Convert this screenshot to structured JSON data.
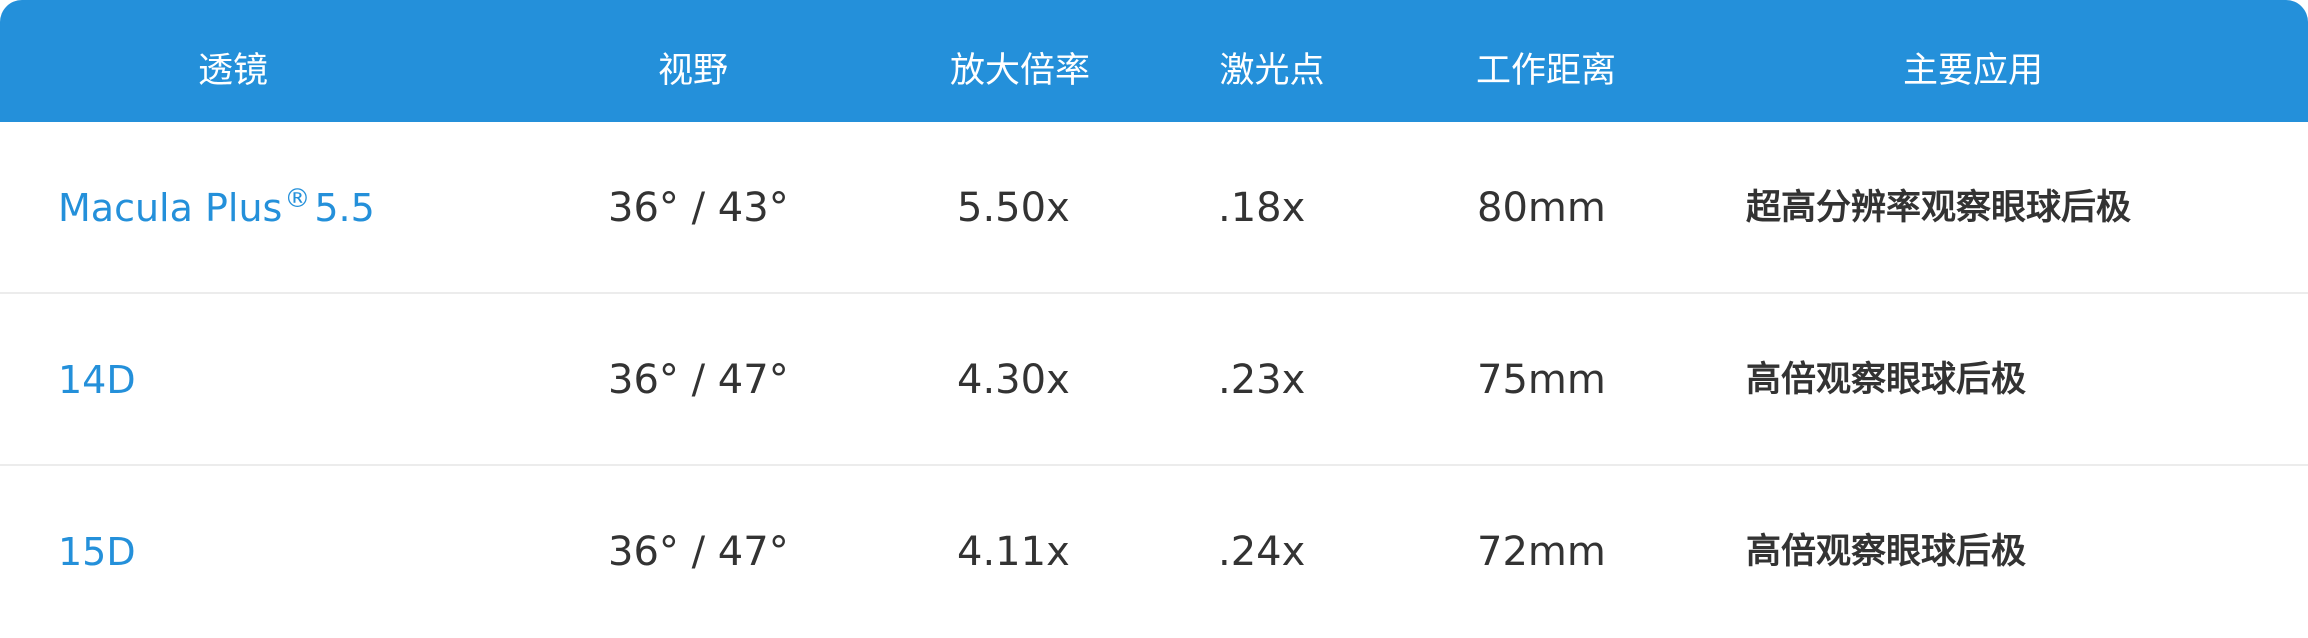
{
  "header": {
    "lens": "透镜",
    "fov": "视野",
    "magnification": "放大倍率",
    "laser_spot": "激光点",
    "working_distance": "工作距离",
    "application": "主要应用"
  },
  "rows": [
    {
      "lens": "Macula Plus",
      "lens_reg": "®",
      "lens_suffix": "5.5",
      "fov": "36°  / 43°",
      "magnification": "5.50x",
      "laser_spot": ".18x",
      "working_distance": "80mm",
      "application": "超高分辨率观察眼球后极"
    },
    {
      "lens": "14D",
      "fov": "36°  / 47°",
      "magnification": "4.30x",
      "laser_spot": ".23x",
      "working_distance": "75mm",
      "application": "高倍观察眼球后极"
    },
    {
      "lens": "15D",
      "fov": "36°  / 47°",
      "magnification": "4.11x",
      "laser_spot": ".24x",
      "working_distance": "72mm",
      "application": "高倍观察眼球后极"
    }
  ],
  "colors": {
    "header_bg": "#2490da",
    "lens_text": "#2490da",
    "body_text": "#333333"
  }
}
